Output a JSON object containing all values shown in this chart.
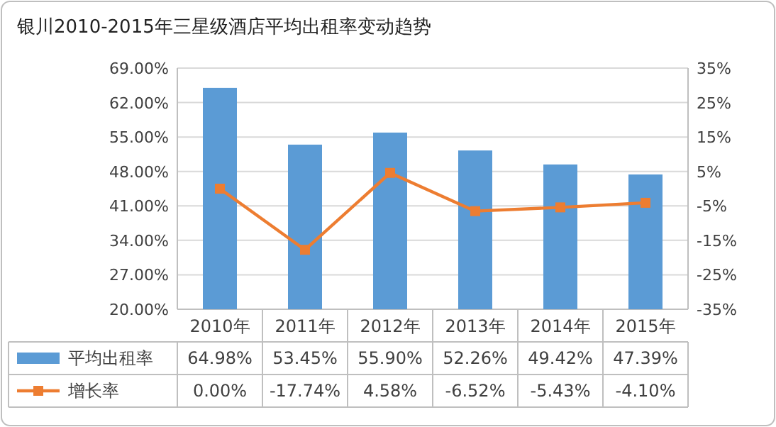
{
  "chart_data": {
    "type": "bar",
    "title": "银川2010-2015年三星级酒店平均出租率变动趋势",
    "categories": [
      "2010年",
      "2011年",
      "2012年",
      "2013年",
      "2014年",
      "2015年"
    ],
    "series": [
      {
        "name": "平均出租率",
        "color": "#5b9bd5",
        "values": [
          64.98,
          53.45,
          55.9,
          52.26,
          49.42,
          47.39
        ],
        "value_labels": [
          "64.98%",
          "53.45%",
          "55.90%",
          "52.26%",
          "49.42%",
          "47.39%"
        ]
      },
      {
        "name": "增长率",
        "type": "line",
        "axis": "y2",
        "color": "#ed7d31",
        "marker": "square",
        "values": [
          0.0,
          -17.74,
          4.58,
          -6.52,
          -5.43,
          -4.1
        ],
        "value_labels": [
          "0.00%",
          "-17.74%",
          "4.58%",
          "-6.52%",
          "-5.43%",
          "-4.10%"
        ]
      }
    ],
    "ylim": [
      20,
      69
    ],
    "yticks": [
      {
        "value": 20,
        "label": "20.00%"
      },
      {
        "value": 27,
        "label": "27.00%"
      },
      {
        "value": 34,
        "label": "34.00%"
      },
      {
        "value": 41,
        "label": "41.00%"
      },
      {
        "value": 48,
        "label": "48.00%"
      },
      {
        "value": 55,
        "label": "55.00%"
      },
      {
        "value": 62,
        "label": "62.00%"
      },
      {
        "value": 69,
        "label": "69.00%"
      }
    ],
    "y2lim": [
      -35,
      35
    ],
    "y2ticks": [
      {
        "value": -35,
        "label": "-35%"
      },
      {
        "value": -25,
        "label": "-25%"
      },
      {
        "value": -15,
        "label": "-15%"
      },
      {
        "value": -5,
        "label": "-5%"
      },
      {
        "value": 5,
        "label": "5%"
      },
      {
        "value": 15,
        "label": "15%"
      },
      {
        "value": 25,
        "label": "25%"
      },
      {
        "value": 35,
        "label": "35%"
      }
    ],
    "grid": "y",
    "legend": "bottom"
  }
}
